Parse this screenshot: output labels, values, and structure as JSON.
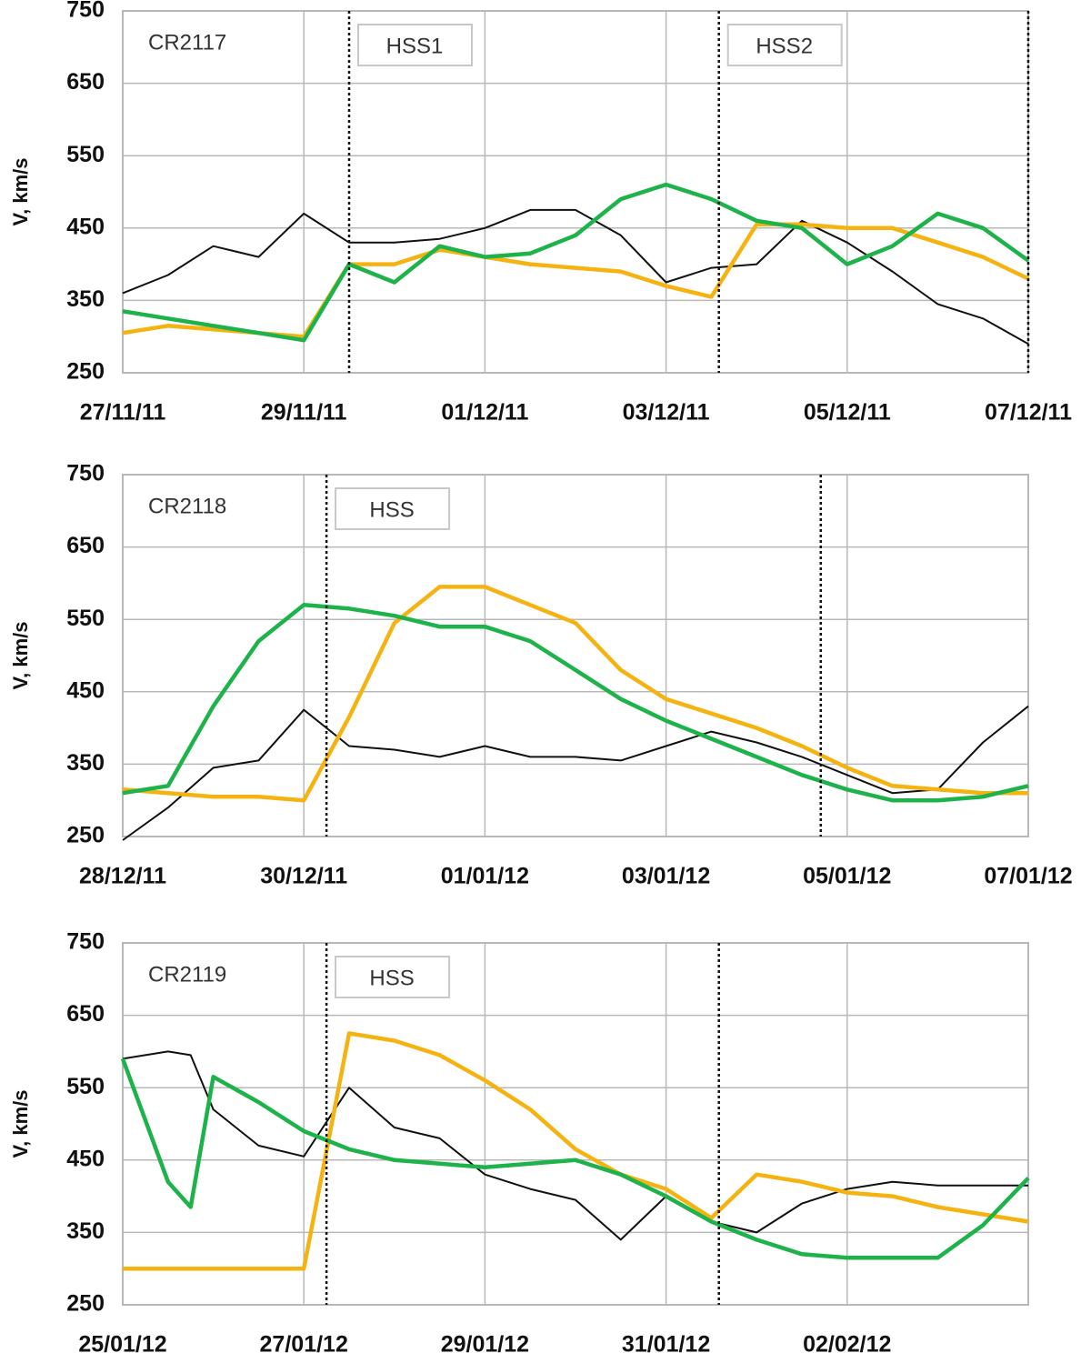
{
  "chart_data": [
    {
      "type": "line",
      "label": "CR2117",
      "ylabel": "V, km/s",
      "x": [
        "2011-11-27T00:00",
        "2011-11-27T12:00",
        "2011-11-28T00:00",
        "2011-11-28T12:00",
        "2011-11-29T00:00",
        "2011-11-29T12:00",
        "2011-11-30T00:00",
        "2011-11-30T12:00",
        "2011-12-01T00:00",
        "2011-12-01T12:00",
        "2011-12-02T00:00",
        "2011-12-02T12:00",
        "2011-12-03T00:00",
        "2011-12-03T12:00",
        "2011-12-04T00:00",
        "2011-12-04T12:00",
        "2011-12-05T00:00",
        "2011-12-05T12:00",
        "2011-12-06T00:00",
        "2011-12-06T12:00",
        "2011-12-07T00:00"
      ],
      "series": [
        {
          "color": "#111111",
          "values": [
            360,
            385,
            425,
            410,
            470,
            430,
            430,
            435,
            450,
            475,
            475,
            440,
            375,
            395,
            400,
            460,
            430,
            390,
            345,
            325,
            290
          ]
        },
        {
          "color": "#f5b312",
          "values": [
            305,
            315,
            310,
            305,
            300,
            400,
            400,
            420,
            410,
            400,
            395,
            390,
            370,
            355,
            455,
            455,
            450,
            450,
            430,
            410,
            380
          ]
        },
        {
          "color": "#1db34a",
          "values": [
            335,
            325,
            315,
            305,
            295,
            400,
            375,
            425,
            410,
            415,
            440,
            490,
            510,
            490,
            460,
            450,
            400,
            425,
            470,
            450,
            405
          ]
        }
      ],
      "xlim": [
        "2011-11-27T00:00",
        "2011-12-07T00:00"
      ],
      "xticks": [
        {
          "value": "2011-11-27T00:00",
          "label": "27/11/11"
        },
        {
          "value": "2011-11-29T00:00",
          "label": "29/11/11"
        },
        {
          "value": "2011-12-01T00:00",
          "label": "01/12/11"
        },
        {
          "value": "2011-12-03T00:00",
          "label": "03/12/11"
        },
        {
          "value": "2011-12-05T00:00",
          "label": "05/12/11"
        },
        {
          "value": "2011-12-07T00:00",
          "label": "07/12/11"
        }
      ],
      "ylim": [
        250,
        750
      ],
      "yticks": [
        250,
        350,
        450,
        550,
        650,
        750
      ],
      "grid": true,
      "vlines": [
        "2011-11-29T12:00",
        "2011-12-03T14:00",
        "2011-12-07T00:00"
      ],
      "annotations": [
        "HSS1",
        "HSS2"
      ]
    },
    {
      "type": "line",
      "label": "CR2118",
      "ylabel": "V, km/s",
      "x": [
        "2011-12-28T00:00",
        "2011-12-28T12:00",
        "2011-12-29T00:00",
        "2011-12-29T12:00",
        "2011-12-30T00:00",
        "2011-12-30T12:00",
        "2011-12-31T00:00",
        "2011-12-31T12:00",
        "2012-01-01T00:00",
        "2012-01-01T12:00",
        "2012-01-02T00:00",
        "2012-01-02T12:00",
        "2012-01-03T00:00",
        "2012-01-03T12:00",
        "2012-01-04T00:00",
        "2012-01-04T12:00",
        "2012-01-05T00:00",
        "2012-01-05T12:00",
        "2012-01-06T00:00",
        "2012-01-06T12:00",
        "2012-01-07T00:00"
      ],
      "series": [
        {
          "color": "#111111",
          "values": [
            245,
            290,
            345,
            355,
            425,
            375,
            370,
            360,
            375,
            360,
            360,
            355,
            375,
            395,
            380,
            360,
            335,
            310,
            315,
            380,
            430
          ]
        },
        {
          "color": "#f5b312",
          "values": [
            315,
            310,
            305,
            305,
            300,
            415,
            545,
            595,
            595,
            570,
            545,
            480,
            440,
            420,
            400,
            375,
            345,
            320,
            315,
            310,
            310
          ]
        },
        {
          "color": "#1db34a",
          "values": [
            310,
            320,
            430,
            520,
            570,
            565,
            555,
            540,
            540,
            520,
            480,
            440,
            410,
            385,
            360,
            335,
            315,
            300,
            300,
            305,
            320
          ]
        }
      ],
      "xlim": [
        "2011-12-28T00:00",
        "2012-01-07T00:00"
      ],
      "xticks": [
        {
          "value": "2011-12-28T00:00",
          "label": "28/12/11"
        },
        {
          "value": "2011-12-30T00:00",
          "label": "30/12/11"
        },
        {
          "value": "2012-01-01T00:00",
          "label": "01/01/12"
        },
        {
          "value": "2012-01-03T00:00",
          "label": "03/01/12"
        },
        {
          "value": "2012-01-05T00:00",
          "label": "05/01/12"
        },
        {
          "value": "2012-01-07T00:00",
          "label": "07/01/12"
        }
      ],
      "ylim": [
        250,
        750
      ],
      "yticks": [
        250,
        350,
        450,
        550,
        650,
        750
      ],
      "grid": true,
      "vlines": [
        "2011-12-30T06:00",
        "2012-01-04T17:00"
      ],
      "annotations": [
        "HSS"
      ]
    },
    {
      "type": "line",
      "label": "CR2119",
      "ylabel": "V, km/s",
      "x": [
        "2012-01-25T00:00",
        "2012-01-25T12:00",
        "2012-01-25T18:00",
        "2012-01-26T00:00",
        "2012-01-26T12:00",
        "2012-01-27T00:00",
        "2012-01-27T12:00",
        "2012-01-28T00:00",
        "2012-01-28T12:00",
        "2012-01-29T00:00",
        "2012-01-29T12:00",
        "2012-01-30T00:00",
        "2012-01-30T12:00",
        "2012-01-31T00:00",
        "2012-01-31T12:00",
        "2012-02-01T00:00",
        "2012-02-01T12:00",
        "2012-02-02T00:00",
        "2012-02-02T12:00",
        "2012-02-03T00:00",
        "2012-02-03T12:00",
        "2012-02-04T00:00"
      ],
      "series": [
        {
          "color": "#111111",
          "values": [
            590,
            600,
            595,
            520,
            470,
            455,
            550,
            495,
            480,
            430,
            410,
            395,
            340,
            400,
            365,
            350,
            390,
            410,
            420,
            415,
            415,
            415
          ]
        },
        {
          "color": "#f5b312",
          "values": [
            300,
            300,
            300,
            300,
            300,
            300,
            625,
            615,
            595,
            560,
            520,
            465,
            430,
            410,
            370,
            430,
            420,
            405,
            400,
            385,
            375,
            365
          ]
        },
        {
          "color": "#1db34a",
          "values": [
            590,
            420,
            385,
            565,
            530,
            490,
            465,
            450,
            445,
            440,
            445,
            450,
            430,
            400,
            365,
            340,
            320,
            315,
            315,
            315,
            360,
            425
          ]
        }
      ],
      "xlim": [
        "2012-01-25T00:00",
        "2012-02-04T00:00"
      ],
      "xticks": [
        {
          "value": "2012-01-25T00:00",
          "label": "25/01/12"
        },
        {
          "value": "2012-01-27T00:00",
          "label": "27/01/12"
        },
        {
          "value": "2012-01-29T00:00",
          "label": "29/01/12"
        },
        {
          "value": "2012-01-31T00:00",
          "label": "31/01/12"
        },
        {
          "value": "2012-02-02T00:00",
          "label": "02/02/12"
        }
      ],
      "ylim": [
        250,
        750
      ],
      "yticks": [
        250,
        350,
        450,
        550,
        650,
        750
      ],
      "grid": true,
      "vlines": [
        "2012-01-27T06:00",
        "2012-01-31T14:00"
      ],
      "annotations": [
        "HSS"
      ]
    }
  ]
}
